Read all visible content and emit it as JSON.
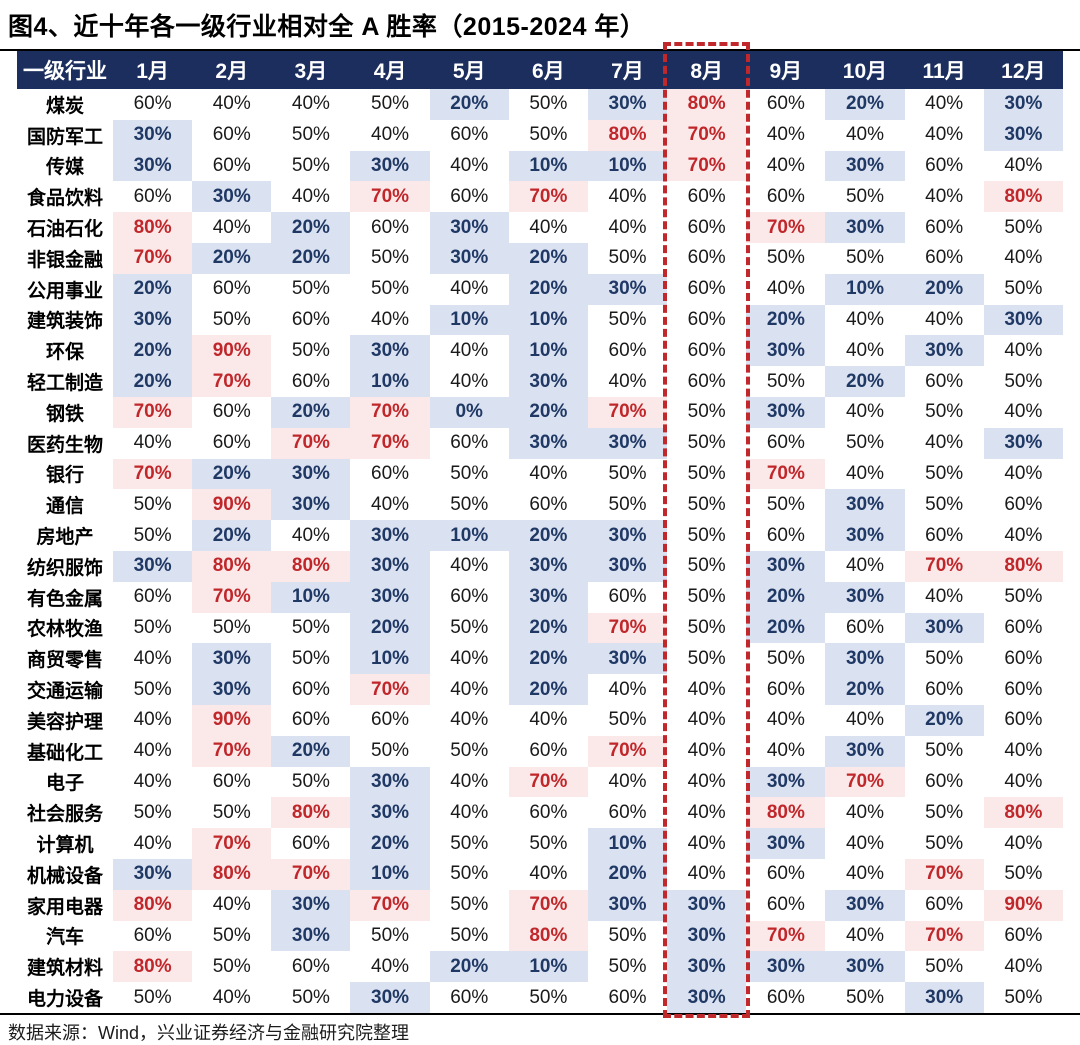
{
  "title": "图4、近十年各一级行业相对全 A 胜率（2015-2024 年）",
  "source": "数据来源：Wind，兴业证券经济与金融研究院整理",
  "chart_data": {
    "type": "table",
    "columns": [
      "一级行业",
      "1月",
      "2月",
      "3月",
      "4月",
      "5月",
      "6月",
      "7月",
      "8月",
      "9月",
      "10月",
      "11月",
      "12月"
    ],
    "unit": "%",
    "highlight_column": "8月",
    "style_rules": {
      "low_max": 30,
      "high_min": 70,
      "low_style": "bold dark-blue text on light-blue background",
      "high_style": "bold red text on light-pink background"
    },
    "colors": {
      "header_bg": "#1b2e5e",
      "header_text": "#ffffff",
      "low_bg": "#dae1f1",
      "low_text": "#1f3864",
      "high_bg": "#fbe9e9",
      "high_text": "#c0272b",
      "dash": "#c0282c"
    },
    "rows": [
      {
        "industry": "煤炭",
        "values": [
          60,
          40,
          40,
          50,
          20,
          50,
          30,
          80,
          60,
          20,
          40,
          30
        ]
      },
      {
        "industry": "国防军工",
        "values": [
          30,
          60,
          50,
          40,
          60,
          50,
          80,
          70,
          40,
          40,
          40,
          30
        ]
      },
      {
        "industry": "传媒",
        "values": [
          30,
          60,
          50,
          30,
          40,
          10,
          10,
          70,
          40,
          30,
          60,
          40
        ]
      },
      {
        "industry": "食品饮料",
        "values": [
          60,
          30,
          40,
          70,
          60,
          70,
          40,
          60,
          60,
          50,
          40,
          80
        ]
      },
      {
        "industry": "石油石化",
        "values": [
          80,
          40,
          20,
          60,
          30,
          40,
          40,
          60,
          70,
          30,
          60,
          50
        ]
      },
      {
        "industry": "非银金融",
        "values": [
          70,
          20,
          20,
          50,
          30,
          20,
          50,
          60,
          50,
          50,
          60,
          40
        ]
      },
      {
        "industry": "公用事业",
        "values": [
          20,
          60,
          50,
          50,
          40,
          20,
          30,
          60,
          40,
          10,
          20,
          50
        ]
      },
      {
        "industry": "建筑装饰",
        "values": [
          30,
          50,
          60,
          40,
          10,
          10,
          50,
          60,
          20,
          40,
          40,
          30
        ]
      },
      {
        "industry": "环保",
        "values": [
          20,
          90,
          50,
          30,
          40,
          10,
          60,
          60,
          30,
          40,
          30,
          40
        ]
      },
      {
        "industry": "轻工制造",
        "values": [
          20,
          70,
          60,
          10,
          40,
          30,
          40,
          60,
          50,
          20,
          60,
          50
        ]
      },
      {
        "industry": "钢铁",
        "values": [
          70,
          60,
          20,
          70,
          0,
          20,
          70,
          50,
          30,
          40,
          50,
          40
        ]
      },
      {
        "industry": "医药生物",
        "values": [
          40,
          60,
          70,
          70,
          60,
          30,
          30,
          50,
          60,
          50,
          40,
          30
        ]
      },
      {
        "industry": "银行",
        "values": [
          70,
          20,
          30,
          60,
          50,
          40,
          50,
          50,
          70,
          40,
          50,
          40
        ]
      },
      {
        "industry": "通信",
        "values": [
          50,
          90,
          30,
          40,
          50,
          60,
          50,
          50,
          50,
          30,
          50,
          60
        ]
      },
      {
        "industry": "房地产",
        "values": [
          50,
          20,
          40,
          30,
          10,
          20,
          30,
          50,
          60,
          30,
          60,
          40
        ]
      },
      {
        "industry": "纺织服饰",
        "values": [
          30,
          80,
          80,
          30,
          40,
          30,
          30,
          50,
          30,
          40,
          70,
          80
        ]
      },
      {
        "industry": "有色金属",
        "values": [
          60,
          70,
          10,
          30,
          60,
          30,
          60,
          50,
          20,
          30,
          40,
          50
        ]
      },
      {
        "industry": "农林牧渔",
        "values": [
          50,
          50,
          50,
          20,
          50,
          20,
          70,
          50,
          20,
          60,
          30,
          60
        ]
      },
      {
        "industry": "商贸零售",
        "values": [
          40,
          30,
          50,
          10,
          40,
          20,
          30,
          50,
          50,
          30,
          50,
          60
        ]
      },
      {
        "industry": "交通运输",
        "values": [
          50,
          30,
          60,
          70,
          40,
          20,
          40,
          40,
          60,
          20,
          60,
          60
        ]
      },
      {
        "industry": "美容护理",
        "values": [
          40,
          90,
          60,
          60,
          40,
          40,
          50,
          40,
          40,
          40,
          20,
          60
        ]
      },
      {
        "industry": "基础化工",
        "values": [
          40,
          70,
          20,
          50,
          50,
          60,
          70,
          40,
          40,
          30,
          50,
          40
        ]
      },
      {
        "industry": "电子",
        "values": [
          40,
          60,
          50,
          30,
          40,
          70,
          40,
          40,
          30,
          70,
          60,
          40
        ]
      },
      {
        "industry": "社会服务",
        "values": [
          50,
          50,
          80,
          30,
          40,
          60,
          60,
          40,
          80,
          40,
          50,
          80
        ]
      },
      {
        "industry": "计算机",
        "values": [
          40,
          70,
          60,
          20,
          50,
          50,
          10,
          40,
          30,
          40,
          50,
          40
        ]
      },
      {
        "industry": "机械设备",
        "values": [
          30,
          80,
          70,
          10,
          50,
          40,
          20,
          40,
          60,
          40,
          70,
          50
        ]
      },
      {
        "industry": "家用电器",
        "values": [
          80,
          40,
          30,
          70,
          50,
          70,
          30,
          30,
          60,
          30,
          60,
          90
        ]
      },
      {
        "industry": "汽车",
        "values": [
          60,
          50,
          30,
          50,
          50,
          80,
          50,
          30,
          70,
          40,
          70,
          60
        ]
      },
      {
        "industry": "建筑材料",
        "values": [
          80,
          50,
          60,
          40,
          20,
          10,
          50,
          30,
          30,
          30,
          50,
          40
        ]
      },
      {
        "industry": "电力设备",
        "values": [
          50,
          40,
          50,
          30,
          60,
          50,
          60,
          30,
          60,
          50,
          30,
          50
        ]
      }
    ]
  }
}
